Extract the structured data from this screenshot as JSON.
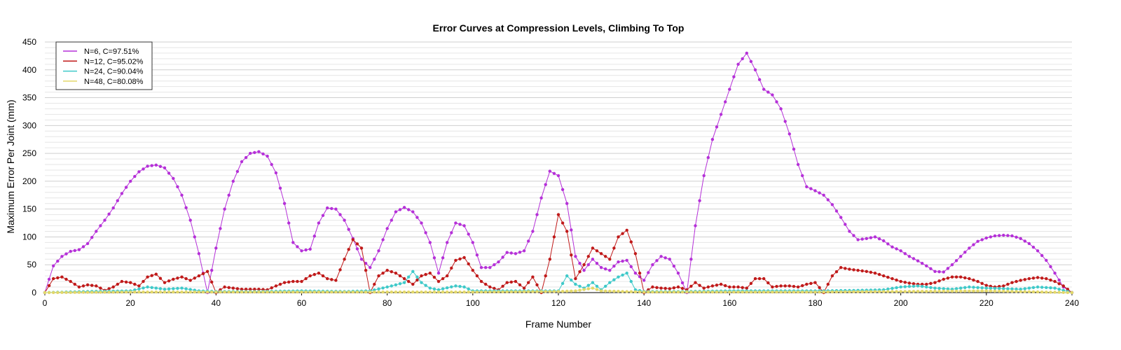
{
  "chart_data": {
    "type": "line",
    "title": "Error Curves at Compression Levels, Climbing To Top",
    "xlabel": "Frame Number",
    "ylabel": "Maximum Error Per Joint (mm)",
    "xlim": [
      0,
      240
    ],
    "ylim": [
      0,
      450
    ],
    "xticks": [
      0,
      20,
      40,
      60,
      80,
      100,
      120,
      140,
      160,
      180,
      200,
      220,
      240
    ],
    "yticks": [
      0,
      50,
      100,
      150,
      200,
      250,
      300,
      350,
      400,
      450
    ],
    "grid": "horizontal",
    "legend_position": "top-left",
    "series": [
      {
        "name": "N=6, C=97.51%",
        "color": "#b530d8",
        "points": [
          [
            0,
            0
          ],
          [
            2,
            48
          ],
          [
            4,
            65
          ],
          [
            6,
            74
          ],
          [
            8,
            77
          ],
          [
            10,
            88
          ],
          [
            12,
            110
          ],
          [
            14,
            130
          ],
          [
            16,
            152
          ],
          [
            18,
            178
          ],
          [
            20,
            200
          ],
          [
            22,
            217
          ],
          [
            24,
            227
          ],
          [
            26,
            229
          ],
          [
            28,
            224
          ],
          [
            30,
            205
          ],
          [
            32,
            175
          ],
          [
            34,
            130
          ],
          [
            36,
            70
          ],
          [
            38,
            0
          ],
          [
            40,
            80
          ],
          [
            42,
            150
          ],
          [
            44,
            200
          ],
          [
            46,
            235
          ],
          [
            48,
            250
          ],
          [
            50,
            253
          ],
          [
            52,
            245
          ],
          [
            54,
            215
          ],
          [
            56,
            160
          ],
          [
            58,
            90
          ],
          [
            60,
            75
          ],
          [
            62,
            78
          ],
          [
            64,
            125
          ],
          [
            66,
            152
          ],
          [
            68,
            150
          ],
          [
            70,
            130
          ],
          [
            72,
            97
          ],
          [
            74,
            60
          ],
          [
            76,
            45
          ],
          [
            78,
            75
          ],
          [
            80,
            115
          ],
          [
            82,
            145
          ],
          [
            84,
            153
          ],
          [
            86,
            145
          ],
          [
            88,
            125
          ],
          [
            90,
            90
          ],
          [
            92,
            35
          ],
          [
            94,
            90
          ],
          [
            96,
            125
          ],
          [
            98,
            120
          ],
          [
            100,
            90
          ],
          [
            102,
            45
          ],
          [
            104,
            45
          ],
          [
            106,
            55
          ],
          [
            108,
            72
          ],
          [
            110,
            70
          ],
          [
            112,
            75
          ],
          [
            114,
            110
          ],
          [
            116,
            170
          ],
          [
            118,
            218
          ],
          [
            120,
            210
          ],
          [
            122,
            160
          ],
          [
            124,
            65
          ],
          [
            126,
            40
          ],
          [
            128,
            60
          ],
          [
            130,
            45
          ],
          [
            132,
            40
          ],
          [
            134,
            55
          ],
          [
            136,
            58
          ],
          [
            138,
            35
          ],
          [
            140,
            22
          ],
          [
            142,
            50
          ],
          [
            144,
            65
          ],
          [
            146,
            60
          ],
          [
            148,
            35
          ],
          [
            150,
            0
          ],
          [
            152,
            120
          ],
          [
            154,
            210
          ],
          [
            156,
            275
          ],
          [
            158,
            320
          ],
          [
            160,
            365
          ],
          [
            162,
            410
          ],
          [
            164,
            430
          ],
          [
            166,
            400
          ],
          [
            168,
            365
          ],
          [
            170,
            355
          ],
          [
            172,
            330
          ],
          [
            174,
            285
          ],
          [
            176,
            230
          ],
          [
            178,
            190
          ],
          [
            180,
            183
          ],
          [
            182,
            175
          ],
          [
            184,
            158
          ],
          [
            186,
            135
          ],
          [
            188,
            110
          ],
          [
            190,
            95
          ],
          [
            192,
            97
          ],
          [
            194,
            100
          ],
          [
            196,
            93
          ],
          [
            198,
            82
          ],
          [
            200,
            75
          ],
          [
            202,
            65
          ],
          [
            204,
            57
          ],
          [
            206,
            48
          ],
          [
            208,
            38
          ],
          [
            210,
            37
          ],
          [
            212,
            50
          ],
          [
            214,
            65
          ],
          [
            216,
            80
          ],
          [
            218,
            92
          ],
          [
            220,
            98
          ],
          [
            222,
            102
          ],
          [
            224,
            103
          ],
          [
            226,
            102
          ],
          [
            228,
            97
          ],
          [
            230,
            88
          ],
          [
            232,
            75
          ],
          [
            234,
            58
          ],
          [
            236,
            35
          ],
          [
            238,
            10
          ],
          [
            240,
            0
          ]
        ]
      },
      {
        "name": "N=12, C=95.02%",
        "color": "#c01a1a",
        "points": [
          [
            0,
            0
          ],
          [
            2,
            25
          ],
          [
            4,
            28
          ],
          [
            6,
            20
          ],
          [
            8,
            10
          ],
          [
            10,
            14
          ],
          [
            12,
            12
          ],
          [
            14,
            4
          ],
          [
            16,
            10
          ],
          [
            18,
            20
          ],
          [
            20,
            18
          ],
          [
            22,
            12
          ],
          [
            24,
            28
          ],
          [
            26,
            33
          ],
          [
            28,
            18
          ],
          [
            30,
            24
          ],
          [
            32,
            28
          ],
          [
            34,
            22
          ],
          [
            36,
            30
          ],
          [
            38,
            38
          ],
          [
            40,
            0
          ],
          [
            42,
            10
          ],
          [
            44,
            8
          ],
          [
            46,
            6
          ],
          [
            48,
            6
          ],
          [
            50,
            6
          ],
          [
            52,
            5
          ],
          [
            54,
            12
          ],
          [
            56,
            18
          ],
          [
            58,
            20
          ],
          [
            60,
            20
          ],
          [
            62,
            30
          ],
          [
            64,
            35
          ],
          [
            66,
            25
          ],
          [
            68,
            22
          ],
          [
            70,
            60
          ],
          [
            72,
            95
          ],
          [
            74,
            80
          ],
          [
            76,
            0
          ],
          [
            78,
            30
          ],
          [
            80,
            40
          ],
          [
            82,
            35
          ],
          [
            84,
            25
          ],
          [
            86,
            15
          ],
          [
            88,
            30
          ],
          [
            90,
            35
          ],
          [
            92,
            20
          ],
          [
            94,
            30
          ],
          [
            96,
            58
          ],
          [
            98,
            63
          ],
          [
            100,
            40
          ],
          [
            102,
            20
          ],
          [
            104,
            10
          ],
          [
            106,
            5
          ],
          [
            108,
            18
          ],
          [
            110,
            20
          ],
          [
            112,
            8
          ],
          [
            114,
            28
          ],
          [
            116,
            0
          ],
          [
            118,
            60
          ],
          [
            120,
            140
          ],
          [
            122,
            110
          ],
          [
            124,
            25
          ],
          [
            126,
            50
          ],
          [
            128,
            80
          ],
          [
            130,
            70
          ],
          [
            132,
            60
          ],
          [
            134,
            100
          ],
          [
            136,
            112
          ],
          [
            138,
            70
          ],
          [
            140,
            0
          ],
          [
            142,
            10
          ],
          [
            144,
            8
          ],
          [
            146,
            7
          ],
          [
            148,
            10
          ],
          [
            150,
            5
          ],
          [
            152,
            18
          ],
          [
            154,
            8
          ],
          [
            156,
            12
          ],
          [
            158,
            15
          ],
          [
            160,
            10
          ],
          [
            162,
            10
          ],
          [
            164,
            8
          ],
          [
            166,
            25
          ],
          [
            168,
            25
          ],
          [
            170,
            10
          ],
          [
            172,
            12
          ],
          [
            174,
            12
          ],
          [
            176,
            10
          ],
          [
            178,
            15
          ],
          [
            180,
            18
          ],
          [
            182,
            0
          ],
          [
            184,
            30
          ],
          [
            186,
            45
          ],
          [
            188,
            42
          ],
          [
            190,
            40
          ],
          [
            192,
            38
          ],
          [
            194,
            35
          ],
          [
            196,
            30
          ],
          [
            198,
            25
          ],
          [
            200,
            20
          ],
          [
            202,
            17
          ],
          [
            204,
            15
          ],
          [
            206,
            15
          ],
          [
            208,
            18
          ],
          [
            210,
            24
          ],
          [
            212,
            28
          ],
          [
            214,
            28
          ],
          [
            216,
            25
          ],
          [
            218,
            20
          ],
          [
            220,
            13
          ],
          [
            222,
            10
          ],
          [
            224,
            12
          ],
          [
            226,
            18
          ],
          [
            228,
            22
          ],
          [
            230,
            25
          ],
          [
            232,
            27
          ],
          [
            234,
            25
          ],
          [
            236,
            20
          ],
          [
            238,
            12
          ],
          [
            240,
            0
          ]
        ]
      },
      {
        "name": "N=24, C=90.04%",
        "color": "#3fc9c9",
        "points": [
          [
            0,
            0
          ],
          [
            10,
            2
          ],
          [
            20,
            3
          ],
          [
            24,
            10
          ],
          [
            28,
            6
          ],
          [
            32,
            8
          ],
          [
            36,
            3
          ],
          [
            40,
            2
          ],
          [
            50,
            2
          ],
          [
            60,
            3
          ],
          [
            70,
            2
          ],
          [
            76,
            3
          ],
          [
            80,
            10
          ],
          [
            84,
            18
          ],
          [
            86,
            38
          ],
          [
            88,
            18
          ],
          [
            90,
            8
          ],
          [
            92,
            5
          ],
          [
            96,
            12
          ],
          [
            98,
            10
          ],
          [
            100,
            3
          ],
          [
            110,
            3
          ],
          [
            120,
            3
          ],
          [
            122,
            30
          ],
          [
            124,
            15
          ],
          [
            126,
            8
          ],
          [
            128,
            18
          ],
          [
            130,
            5
          ],
          [
            132,
            18
          ],
          [
            134,
            28
          ],
          [
            136,
            35
          ],
          [
            138,
            5
          ],
          [
            140,
            2
          ],
          [
            150,
            2
          ],
          [
            160,
            3
          ],
          [
            170,
            3
          ],
          [
            180,
            3
          ],
          [
            190,
            4
          ],
          [
            196,
            5
          ],
          [
            200,
            10
          ],
          [
            204,
            12
          ],
          [
            208,
            8
          ],
          [
            212,
            6
          ],
          [
            216,
            10
          ],
          [
            220,
            8
          ],
          [
            224,
            7
          ],
          [
            228,
            6
          ],
          [
            232,
            10
          ],
          [
            236,
            8
          ],
          [
            240,
            0
          ]
        ]
      },
      {
        "name": "N=48, C=80.08%",
        "color": "#e3d86a",
        "points": [
          [
            0,
            0
          ],
          [
            20,
            1
          ],
          [
            40,
            1
          ],
          [
            60,
            1
          ],
          [
            80,
            1
          ],
          [
            100,
            1
          ],
          [
            120,
            2
          ],
          [
            124,
            3
          ],
          [
            128,
            8
          ],
          [
            130,
            3
          ],
          [
            140,
            1
          ],
          [
            160,
            1
          ],
          [
            180,
            1
          ],
          [
            200,
            2
          ],
          [
            220,
            3
          ],
          [
            240,
            0
          ]
        ]
      }
    ]
  }
}
